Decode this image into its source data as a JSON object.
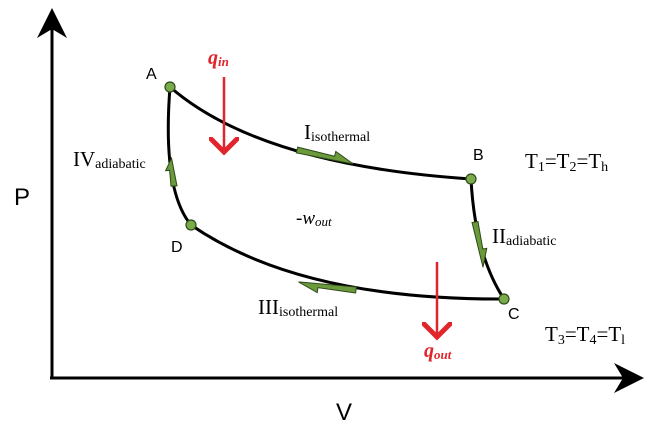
{
  "axes": {
    "y_label": "P",
    "x_label": "V"
  },
  "points": {
    "a": "A",
    "b": "B",
    "c": "C",
    "d": "D"
  },
  "processes": {
    "p1": {
      "numeral": "I",
      "kind": "isothermal"
    },
    "p2": {
      "numeral": "II",
      "kind": "adiabatic"
    },
    "p3": {
      "numeral": "III",
      "kind": "isothermal"
    },
    "p4": {
      "numeral": "IV",
      "kind": "adiabatic"
    }
  },
  "heat_in": {
    "main": "q",
    "sub": "in"
  },
  "heat_out": {
    "main": "q",
    "sub": "out"
  },
  "work": {
    "main": "-w",
    "sub": "out"
  },
  "temps_hot": {
    "t1": "T",
    "s1": "1",
    "eq1": "=T",
    "s2": "2",
    "eq2": "=T",
    "s3": "h"
  },
  "temps_cold": {
    "t1": "T",
    "s1": "3",
    "eq1": "=T",
    "s2": "4",
    "eq2": "=T",
    "s3": "l"
  },
  "colors": {
    "curve": "#000000",
    "arrow_green": "#6a9a3c",
    "heat_red": "#e0252b",
    "point_green": "#7aab4a"
  }
}
